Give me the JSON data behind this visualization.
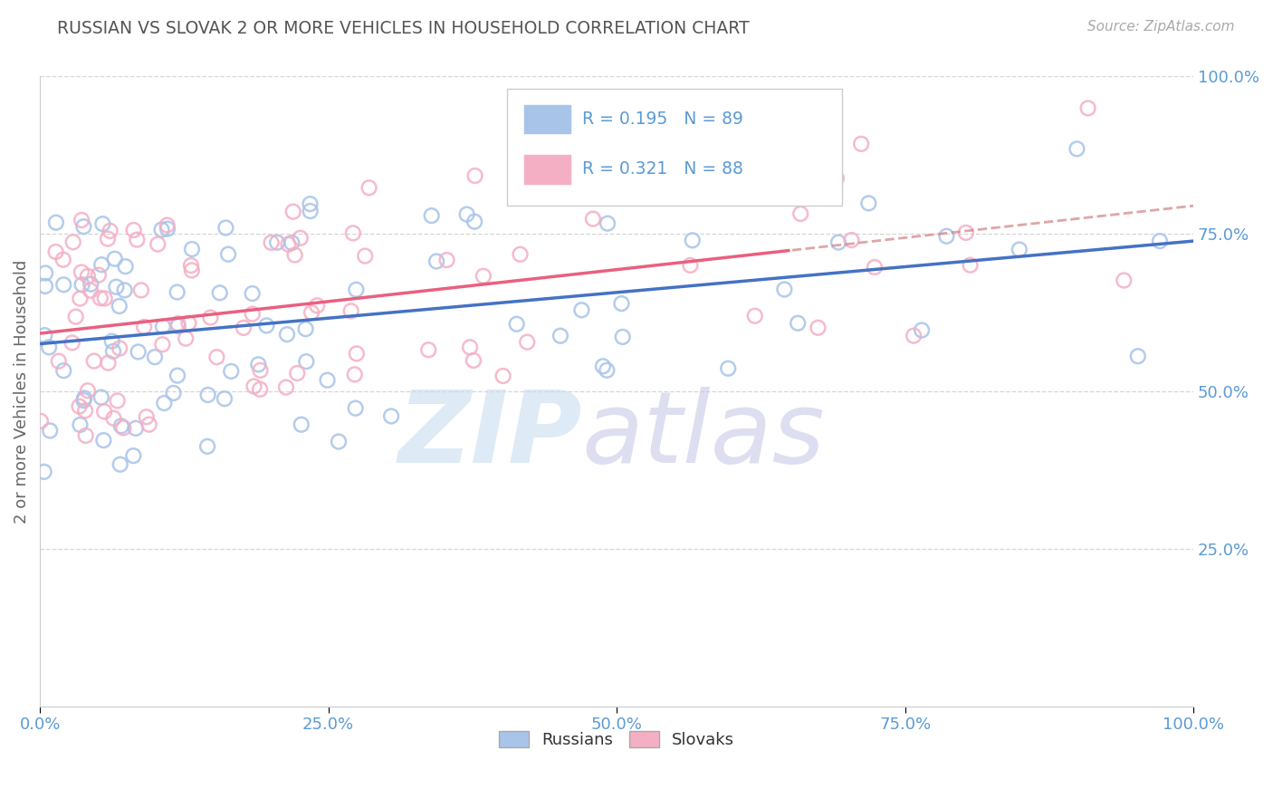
{
  "title": "RUSSIAN VS SLOVAK 2 OR MORE VEHICLES IN HOUSEHOLD CORRELATION CHART",
  "source": "Source: ZipAtlas.com",
  "ylabel": "2 or more Vehicles in Household",
  "xlim": [
    0.0,
    1.0
  ],
  "ylim": [
    0.0,
    1.0
  ],
  "xticks": [
    0.0,
    0.25,
    0.5,
    0.75,
    1.0
  ],
  "xticklabels": [
    "0.0%",
    "25.0%",
    "50.0%",
    "75.0%",
    "100.0%"
  ],
  "yticks": [
    0.25,
    0.5,
    0.75,
    1.0
  ],
  "yticklabels": [
    "25.0%",
    "50.0%",
    "75.0%",
    "100.0%"
  ],
  "russian_color": "#a8c4e8",
  "slovak_color": "#f4afc4",
  "russian_R": 0.195,
  "russian_N": 89,
  "slovak_R": 0.321,
  "slovak_N": 88,
  "background_color": "#ffffff",
  "grid_color": "#cccccc",
  "title_color": "#555555",
  "tick_color": "#5b9bd5",
  "line_color_russian": "#4472c4",
  "line_color_slovak": "#e86080",
  "line_color_dash": "#d08080",
  "watermark_zip_color": "#c8ddf0",
  "watermark_atlas_color": "#c8c8e8"
}
